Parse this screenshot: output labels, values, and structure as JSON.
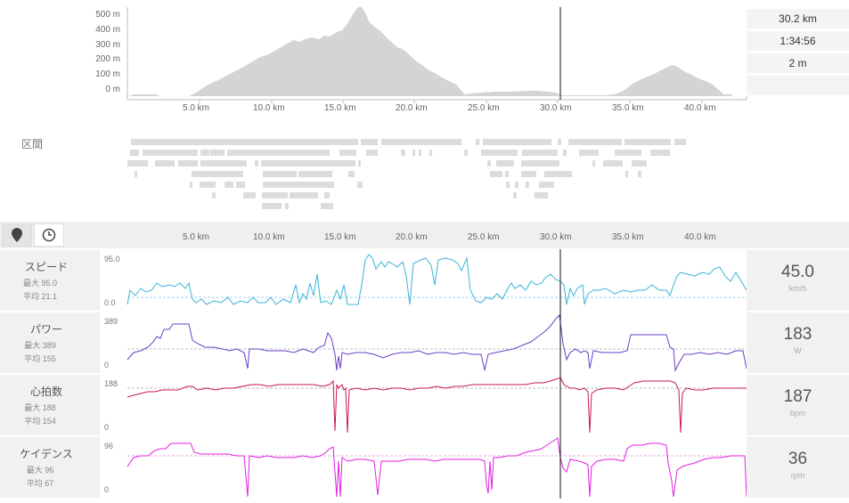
{
  "elevation": {
    "y_labels": [
      "500 m",
      "400 m",
      "300 m",
      "200 m",
      "100 m",
      "0 m"
    ],
    "x_labels": [
      "5.0 km",
      "10.0 km",
      "15.0 km",
      "20.0 km",
      "25.0 km",
      "30.0 km",
      "35.0 km",
      "40.0 km"
    ]
  },
  "stats": {
    "distance": "30.2 km",
    "time": "1:34:56",
    "elevation": "2 m"
  },
  "segments": {
    "label": "区間"
  },
  "axis": {
    "x_labels": [
      "5.0 km",
      "10.0 km",
      "15.0 km",
      "20.0 km",
      "25.0 km",
      "30.0 km",
      "35.0 km",
      "40.0 km"
    ]
  },
  "tabs": {
    "map_icon": "map-pin-icon",
    "time_icon": "clock-icon"
  },
  "metrics": [
    {
      "name": "スピード",
      "max": "最大 95.0",
      "avg": "平均 21.1",
      "ymax": "95.0",
      "ymin": "0.0",
      "value": "45.0",
      "unit": "km/h",
      "color": "#3bb3d6"
    },
    {
      "name": "パワー",
      "max": "最大 389",
      "avg": "平均 155",
      "ymax": "389",
      "ymin": "0",
      "value": "183",
      "unit": "W",
      "color": "#6a3fc7"
    },
    {
      "name": "心拍数",
      "max": "最大 188",
      "avg": "平均 154",
      "ymax": "188",
      "ymin": "0",
      "value": "187",
      "unit": "bpm",
      "color": "#c8194f"
    },
    {
      "name": "ケイデンス",
      "max": "最大 96",
      "avg": "平均 67",
      "ymax": "96",
      "ymin": "0",
      "value": "36",
      "unit": "rpm",
      "color": "#e020e0"
    }
  ],
  "colors": {
    "elevation_fill": "#d4d4d4",
    "segment_bar": "#dcdcdc",
    "cursor": "#111111"
  }
}
